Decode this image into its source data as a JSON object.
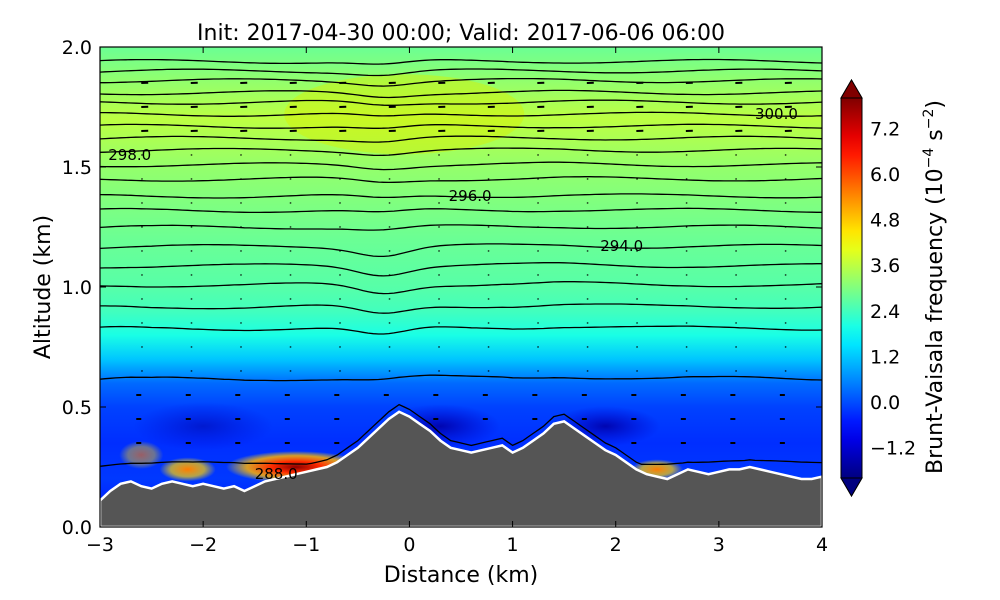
{
  "chart_data": {
    "type": "heatmap",
    "title": "Init: 2017-04-30 00:00; Valid: 2017-06-06 06:00",
    "xlabel": "Distance (km)",
    "ylabel": "Altitude (km)",
    "xlim": [
      -3,
      4
    ],
    "ylim": [
      0,
      2
    ],
    "x_ticks": [
      "−3",
      "−2",
      "−1",
      "0",
      "1",
      "2",
      "3",
      "4"
    ],
    "y_ticks": [
      "0.0",
      "0.5",
      "1.0",
      "1.5",
      "2.0"
    ],
    "colorbar": {
      "label_main": "Brunt-Vaisala frequency (10",
      "label_exp1": "−4",
      "label_mid": " s",
      "label_exp2": "−2",
      "label_end": ")",
      "range": [
        -2.0,
        8.0
      ],
      "ticks": [
        "−1.2",
        "0.0",
        "1.2",
        "2.4",
        "3.6",
        "4.8",
        "6.0",
        "7.2"
      ],
      "tick_values": [
        -1.2,
        0.0,
        1.2,
        2.4,
        3.6,
        4.8,
        6.0,
        7.2
      ],
      "colormap": "jet"
    },
    "contour_labels": [
      {
        "text": "300.0",
        "x": 3.35,
        "y": 1.72
      },
      {
        "text": "298.0",
        "x": -2.92,
        "y": 1.55
      },
      {
        "text": "296.0",
        "x": 0.38,
        "y": 1.38
      },
      {
        "text": "294.0",
        "x": 1.85,
        "y": 1.17
      },
      {
        "text": "288.0",
        "x": -1.5,
        "y": 0.22
      }
    ],
    "terrain_profile": {
      "x": [
        -3.0,
        -2.9,
        -2.8,
        -2.7,
        -2.6,
        -2.5,
        -2.4,
        -2.3,
        -2.2,
        -2.1,
        -2.0,
        -1.9,
        -1.8,
        -1.7,
        -1.6,
        -1.5,
        -1.4,
        -1.3,
        -1.2,
        -1.1,
        -1.0,
        -0.9,
        -0.8,
        -0.7,
        -0.6,
        -0.5,
        -0.4,
        -0.3,
        -0.2,
        -0.1,
        0.0,
        0.1,
        0.2,
        0.3,
        0.4,
        0.5,
        0.6,
        0.7,
        0.8,
        0.9,
        1.0,
        1.1,
        1.2,
        1.3,
        1.4,
        1.5,
        1.6,
        1.7,
        1.8,
        1.9,
        2.0,
        2.1,
        2.2,
        2.3,
        2.4,
        2.5,
        2.6,
        2.7,
        2.8,
        2.9,
        3.0,
        3.1,
        3.2,
        3.3,
        3.4,
        3.5,
        3.6,
        3.7,
        3.8,
        3.9,
        4.0
      ],
      "y": [
        0.11,
        0.15,
        0.18,
        0.19,
        0.17,
        0.16,
        0.18,
        0.19,
        0.18,
        0.17,
        0.18,
        0.17,
        0.16,
        0.17,
        0.15,
        0.17,
        0.19,
        0.2,
        0.21,
        0.22,
        0.23,
        0.24,
        0.25,
        0.27,
        0.3,
        0.33,
        0.37,
        0.41,
        0.45,
        0.48,
        0.46,
        0.43,
        0.4,
        0.36,
        0.33,
        0.32,
        0.31,
        0.32,
        0.33,
        0.34,
        0.31,
        0.33,
        0.36,
        0.39,
        0.43,
        0.44,
        0.41,
        0.38,
        0.35,
        0.32,
        0.3,
        0.27,
        0.24,
        0.22,
        0.21,
        0.2,
        0.22,
        0.24,
        0.23,
        0.22,
        0.23,
        0.24,
        0.24,
        0.25,
        0.24,
        0.23,
        0.22,
        0.21,
        0.2,
        0.2,
        0.21
      ]
    },
    "isentropes": {
      "values": [
        288.0,
        290.0,
        292.0,
        293.0,
        293.5,
        294.0,
        294.5,
        295.0,
        295.5,
        296.0,
        296.5,
        297.0,
        297.5,
        298.0,
        298.5,
        299.0,
        299.5,
        300.0,
        300.5,
        301.0,
        301.5
      ],
      "base_altitudes": [
        0.27,
        0.62,
        0.83,
        0.92,
        1.01,
        1.09,
        1.17,
        1.25,
        1.32,
        1.38,
        1.45,
        1.51,
        1.57,
        1.62,
        1.67,
        1.72,
        1.77,
        1.81,
        1.86,
        1.9,
        1.94
      ]
    }
  }
}
